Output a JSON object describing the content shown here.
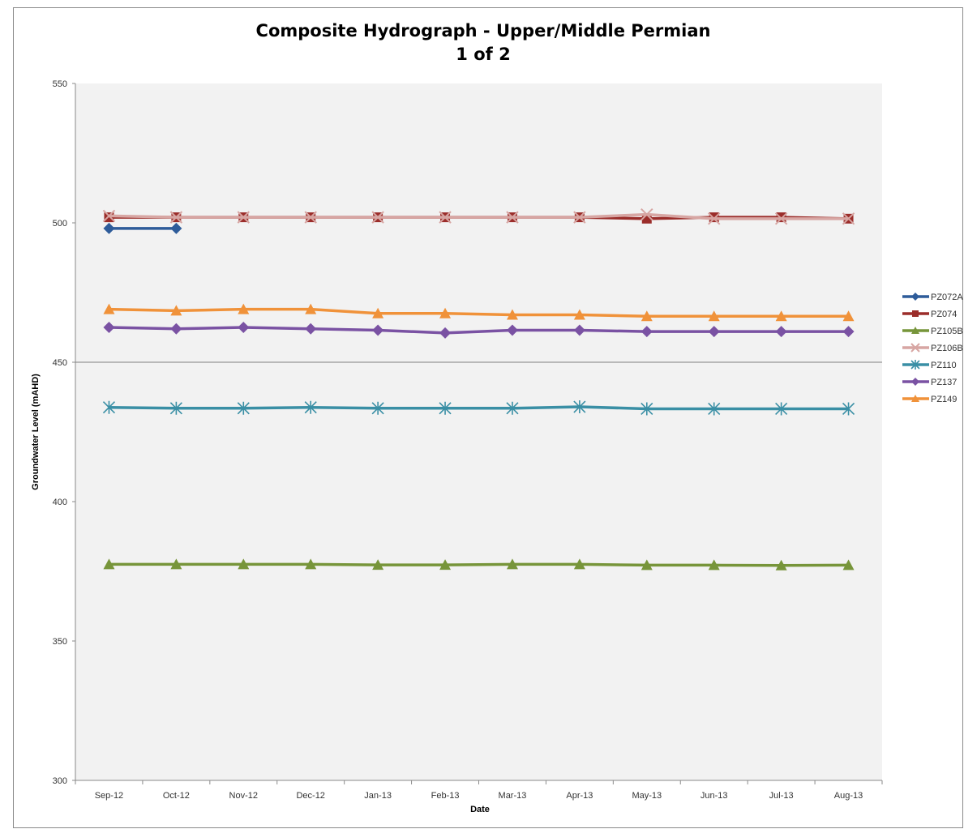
{
  "chart_data": {
    "type": "line",
    "title_line1": "Composite Hydrograph - Upper/Middle Permian",
    "title_line2": "1 of 2",
    "xlabel": "Date",
    "ylabel": "Groundwater Level (mAHD)",
    "ylim": [
      300,
      550
    ],
    "yticks": [
      300,
      350,
      400,
      450,
      500,
      550
    ],
    "categories": [
      "Sep-12",
      "Oct-12",
      "Nov-12",
      "Dec-12",
      "Jan-13",
      "Feb-13",
      "Mar-13",
      "Apr-13",
      "May-13",
      "Jun-13",
      "Jul-13",
      "Aug-13"
    ],
    "reference_line": 450,
    "legend_position": "right",
    "series": [
      {
        "name": "PZ072A",
        "color": "#2e5c9a",
        "marker": "diamond",
        "values": [
          498,
          498,
          null,
          null,
          null,
          null,
          null,
          null,
          null,
          null,
          null,
          null
        ]
      },
      {
        "name": "PZ074",
        "color": "#9b2d2a",
        "marker": "square",
        "values": [
          502,
          502,
          502,
          502,
          502,
          502,
          502,
          502,
          501.5,
          502,
          502,
          501.5
        ]
      },
      {
        "name": "PZ105B",
        "color": "#77953a",
        "marker": "triangle",
        "values": [
          377.5,
          377.5,
          377.5,
          377.5,
          377.3,
          377.3,
          377.5,
          377.5,
          377.2,
          377.2,
          377.1,
          377.2
        ]
      },
      {
        "name": "PZ106B",
        "color": "#d7a6a3",
        "marker": "x",
        "values": [
          502.5,
          502,
          502,
          502,
          502,
          502,
          502,
          502,
          503,
          501.5,
          501.5,
          501.5
        ]
      },
      {
        "name": "PZ110",
        "color": "#3a8fa5",
        "marker": "star",
        "values": [
          433.8,
          433.5,
          433.5,
          433.8,
          433.5,
          433.5,
          433.5,
          434,
          433.3,
          433.3,
          433.3,
          433.3
        ]
      },
      {
        "name": "PZ137",
        "color": "#7a52a3",
        "marker": "diamond",
        "values": [
          462.5,
          462,
          462.5,
          462,
          461.5,
          460.5,
          461.5,
          461.5,
          461,
          461,
          461,
          461
        ]
      },
      {
        "name": "PZ149",
        "color": "#f0923a",
        "marker": "triangle",
        "values": [
          469,
          468.5,
          469,
          469,
          467.5,
          467.5,
          467,
          467,
          466.5,
          466.5,
          466.5,
          466.5
        ]
      }
    ]
  }
}
